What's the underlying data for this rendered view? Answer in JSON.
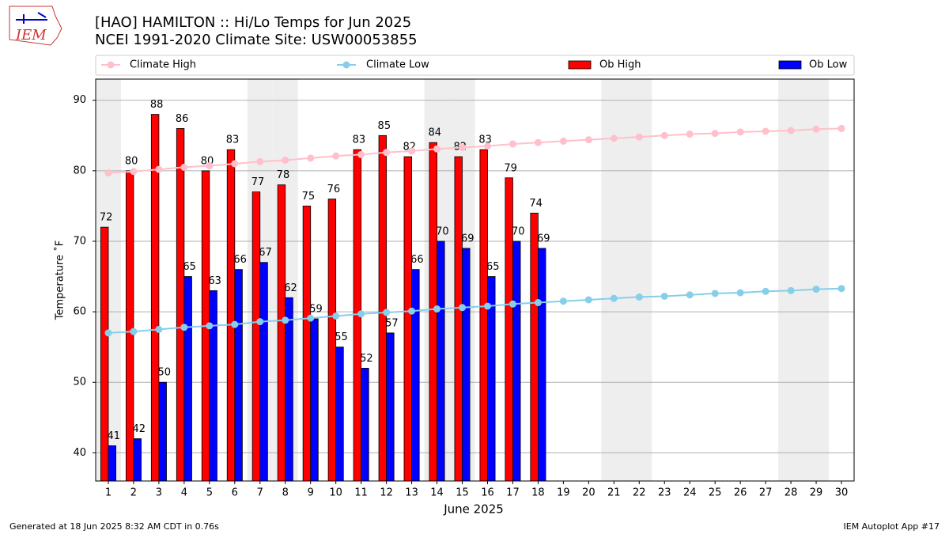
{
  "header": {
    "logo_text": "IEM"
  },
  "chart_data": {
    "type": "bar",
    "title": "[HAO] HAMILTON :: Hi/Lo Temps for Jun 2025",
    "subtitle": "NCEI 1991-2020 Climate Site: USW00053855",
    "x_label": "June 2025",
    "y_label": "Temperature ˚F",
    "x": [
      1,
      2,
      3,
      4,
      5,
      6,
      7,
      8,
      9,
      10,
      11,
      12,
      13,
      14,
      15,
      16,
      17,
      18,
      19,
      20,
      21,
      22,
      23,
      24,
      25,
      26,
      27,
      28,
      29,
      30
    ],
    "xlim": [
      0.5,
      30.5
    ],
    "xticks": [
      1,
      2,
      3,
      4,
      5,
      6,
      7,
      8,
      9,
      10,
      11,
      12,
      13,
      14,
      15,
      16,
      17,
      18,
      19,
      20,
      21,
      22,
      23,
      24,
      25,
      26,
      27,
      28,
      29,
      30
    ],
    "ylim": [
      36,
      93
    ],
    "yticks": [
      40,
      50,
      60,
      70,
      80,
      90
    ],
    "grid": true,
    "weekends": [
      1,
      7,
      8,
      14,
      15,
      21,
      22,
      28,
      29
    ],
    "series": [
      {
        "name": "Climate High",
        "kind": "line",
        "color": "#ffc0cb",
        "values": [
          79.7,
          79.9,
          80.2,
          80.5,
          80.7,
          81.0,
          81.3,
          81.5,
          81.8,
          82.1,
          82.3,
          82.6,
          82.8,
          83.1,
          83.3,
          83.5,
          83.8,
          84.0,
          84.2,
          84.4,
          84.6,
          84.8,
          85.0,
          85.2,
          85.3,
          85.5,
          85.6,
          85.7,
          85.9,
          86.0
        ]
      },
      {
        "name": "Climate Low",
        "kind": "line",
        "color": "#87ceeb",
        "values": [
          57.0,
          57.2,
          57.5,
          57.8,
          58.0,
          58.2,
          58.6,
          58.8,
          59.1,
          59.4,
          59.7,
          59.9,
          60.1,
          60.4,
          60.6,
          60.8,
          61.1,
          61.3,
          61.5,
          61.7,
          61.9,
          62.1,
          62.2,
          62.4,
          62.6,
          62.7,
          62.9,
          63.0,
          63.2,
          63.3
        ]
      },
      {
        "name": "Ob High",
        "kind": "bar",
        "color": "#ff0000",
        "values": [
          72,
          80,
          88,
          86,
          80,
          83,
          77,
          78,
          75,
          76,
          83,
          85,
          82,
          84,
          82,
          83,
          79,
          74,
          null,
          null,
          null,
          null,
          null,
          null,
          null,
          null,
          null,
          null,
          null,
          null
        ]
      },
      {
        "name": "Ob Low",
        "kind": "bar",
        "color": "#0000ff",
        "values": [
          41,
          42,
          50,
          65,
          63,
          66,
          67,
          62,
          59,
          55,
          52,
          57,
          66,
          70,
          69,
          65,
          70,
          69,
          null,
          null,
          null,
          null,
          null,
          null,
          null,
          null,
          null,
          null,
          null,
          null
        ]
      }
    ]
  },
  "footer": {
    "left": "Generated at 18 Jun 2025 8:32 AM CDT in 0.76s",
    "right": "IEM Autoplot App #17"
  }
}
